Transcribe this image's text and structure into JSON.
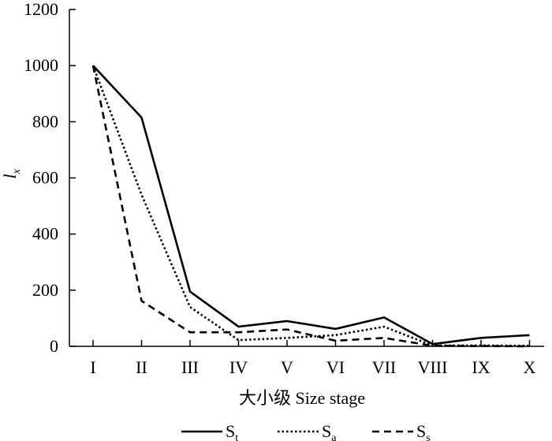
{
  "chart_data": {
    "type": "line",
    "xlabel": "大小级 Size stage",
    "ylabel": {
      "main": "l",
      "sub": "x"
    },
    "categories": [
      "I",
      "II",
      "III",
      "IV",
      "V",
      "VI",
      "VII",
      "VIII",
      "IX",
      "X"
    ],
    "ylim": [
      0,
      1200
    ],
    "yticks": [
      "0",
      "200",
      "400",
      "600",
      "800",
      "1000",
      "1200"
    ],
    "grid": false,
    "legend_position": "bottom",
    "series": [
      {
        "name": "St",
        "label_main": "S",
        "label_sub": "t",
        "style": "solid",
        "values": [
          1000,
          815,
          195,
          70,
          90,
          62,
          103,
          8,
          30,
          40
        ]
      },
      {
        "name": "Sa",
        "label_main": "S",
        "label_sub": "a",
        "style": "dotted",
        "values": [
          1000,
          540,
          140,
          22,
          30,
          40,
          70,
          3,
          3,
          2
        ]
      },
      {
        "name": "Ss",
        "label_main": "S",
        "label_sub": "s",
        "style": "dashed",
        "values": [
          1000,
          162,
          50,
          50,
          60,
          20,
          30,
          2,
          1,
          0
        ]
      }
    ],
    "line_color": "#000000"
  }
}
